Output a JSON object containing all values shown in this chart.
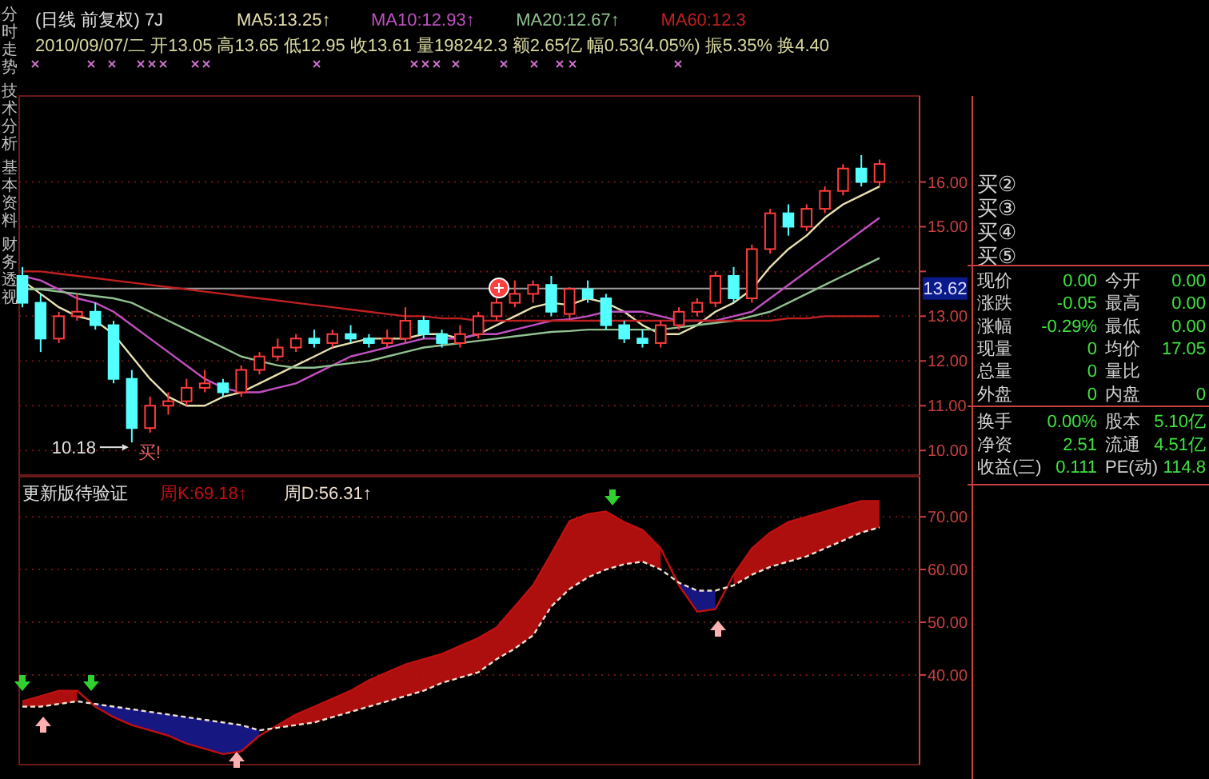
{
  "chart_data": [
    {
      "type": "candlestick",
      "title": "(日线 前复权) 7J",
      "categories": [
        null,
        null,
        null,
        null,
        null,
        null,
        null,
        null,
        null,
        null,
        null,
        null,
        null,
        null,
        null,
        null,
        null,
        null,
        null,
        null,
        null,
        null,
        null,
        null,
        null,
        null,
        null,
        null,
        null,
        null,
        null,
        null,
        null,
        null,
        null,
        null,
        null,
        null,
        null,
        null,
        null,
        null,
        null,
        null,
        null,
        null,
        null,
        null
      ],
      "ohlc": [
        [
          13.9,
          14.1,
          13.2,
          13.3
        ],
        [
          13.3,
          13.5,
          12.2,
          12.5
        ],
        [
          12.5,
          13.1,
          12.4,
          13.0
        ],
        [
          13.0,
          13.5,
          12.9,
          13.1
        ],
        [
          13.1,
          13.3,
          12.7,
          12.8
        ],
        [
          12.8,
          12.9,
          11.5,
          11.6
        ],
        [
          11.6,
          11.8,
          10.18,
          10.5
        ],
        [
          10.5,
          11.2,
          10.4,
          11.0
        ],
        [
          11.0,
          11.3,
          10.8,
          11.1
        ],
        [
          11.1,
          11.6,
          11.0,
          11.4
        ],
        [
          11.4,
          11.8,
          11.3,
          11.5
        ],
        [
          11.5,
          11.6,
          11.2,
          11.3
        ],
        [
          11.3,
          11.9,
          11.2,
          11.8
        ],
        [
          11.8,
          12.2,
          11.7,
          12.1
        ],
        [
          12.1,
          12.5,
          12.0,
          12.3
        ],
        [
          12.3,
          12.6,
          12.2,
          12.5
        ],
        [
          12.5,
          12.7,
          12.3,
          12.4
        ],
        [
          12.4,
          12.7,
          12.3,
          12.6
        ],
        [
          12.6,
          12.8,
          12.4,
          12.5
        ],
        [
          12.5,
          12.6,
          12.3,
          12.4
        ],
        [
          12.4,
          12.7,
          12.3,
          12.5
        ],
        [
          12.5,
          13.2,
          12.4,
          12.9
        ],
        [
          12.9,
          13.0,
          12.5,
          12.6
        ],
        [
          12.6,
          12.7,
          12.3,
          12.4
        ],
        [
          12.4,
          12.8,
          12.3,
          12.6
        ],
        [
          12.6,
          13.1,
          12.5,
          13.0
        ],
        [
          13.0,
          13.4,
          12.9,
          13.3
        ],
        [
          13.3,
          13.8,
          13.2,
          13.5
        ],
        [
          13.5,
          13.8,
          13.3,
          13.7
        ],
        [
          13.7,
          13.9,
          13.0,
          13.1
        ],
        [
          13.05,
          13.65,
          12.95,
          13.61
        ],
        [
          13.6,
          13.8,
          13.3,
          13.4
        ],
        [
          13.4,
          13.5,
          12.7,
          12.8
        ],
        [
          12.8,
          12.9,
          12.4,
          12.5
        ],
        [
          12.5,
          12.7,
          12.3,
          12.4
        ],
        [
          12.4,
          12.9,
          12.3,
          12.8
        ],
        [
          12.8,
          13.2,
          12.7,
          13.1
        ],
        [
          13.1,
          13.4,
          13.0,
          13.3
        ],
        [
          13.3,
          14.0,
          13.2,
          13.9
        ],
        [
          13.9,
          14.1,
          13.3,
          13.4
        ],
        [
          13.4,
          14.6,
          13.3,
          14.5
        ],
        [
          14.5,
          15.4,
          14.4,
          15.3
        ],
        [
          15.3,
          15.5,
          14.8,
          15.0
        ],
        [
          15.0,
          15.5,
          14.9,
          15.4
        ],
        [
          15.4,
          15.9,
          15.3,
          15.8
        ],
        [
          15.8,
          16.4,
          15.7,
          16.3
        ],
        [
          16.3,
          16.6,
          15.9,
          16.0
        ],
        [
          16.0,
          16.5,
          15.9,
          16.4
        ]
      ],
      "series": [
        {
          "type": "line",
          "name": "MA5:13.25↑",
          "color": "#e8e0b0",
          "values": [
            13.8,
            13.5,
            13.2,
            13.0,
            12.9,
            12.6,
            12.1,
            11.6,
            11.2,
            11.0,
            11.0,
            11.2,
            11.3,
            11.5,
            11.7,
            11.9,
            12.1,
            12.3,
            12.4,
            12.5,
            12.5,
            12.5,
            12.6,
            12.6,
            12.5,
            12.6,
            12.8,
            13.0,
            13.2,
            13.3,
            13.25,
            13.4,
            13.3,
            13.1,
            12.8,
            12.6,
            12.6,
            12.8,
            13.1,
            13.3,
            13.6,
            14.1,
            14.5,
            14.8,
            15.2,
            15.5,
            15.7,
            15.9
          ]
        },
        {
          "type": "line",
          "name": "MA10:12.93↑",
          "color": "#c050c0",
          "values": [
            13.9,
            13.8,
            13.6,
            13.4,
            13.3,
            13.1,
            12.8,
            12.5,
            12.2,
            11.9,
            11.6,
            11.4,
            11.3,
            11.3,
            11.4,
            11.5,
            11.7,
            11.9,
            12.1,
            12.2,
            12.3,
            12.4,
            12.5,
            12.5,
            12.5,
            12.6,
            12.6,
            12.7,
            12.8,
            12.9,
            12.93,
            13.0,
            13.1,
            13.1,
            13.1,
            13.0,
            12.9,
            12.9,
            12.9,
            13.0,
            13.1,
            13.4,
            13.7,
            14.0,
            14.3,
            14.6,
            14.9,
            15.2
          ]
        },
        {
          "type": "line",
          "name": "MA20:12.67↑",
          "color": "#90c090",
          "values": [
            13.6,
            13.6,
            13.55,
            13.5,
            13.45,
            13.4,
            13.3,
            13.1,
            12.9,
            12.7,
            12.5,
            12.3,
            12.1,
            12.0,
            11.9,
            11.85,
            11.85,
            11.9,
            11.95,
            12.0,
            12.1,
            12.2,
            12.3,
            12.35,
            12.4,
            12.45,
            12.5,
            12.55,
            12.6,
            12.65,
            12.67,
            12.7,
            12.7,
            12.7,
            12.7,
            12.7,
            12.75,
            12.8,
            12.85,
            12.9,
            13.0,
            13.1,
            13.3,
            13.5,
            13.7,
            13.9,
            14.1,
            14.3
          ]
        },
        {
          "type": "line",
          "name": "MA60:12.3",
          "color": "#c02020",
          "values": [
            14.0,
            14.0,
            13.95,
            13.9,
            13.85,
            13.8,
            13.75,
            13.7,
            13.65,
            13.6,
            13.55,
            13.5,
            13.45,
            13.4,
            13.35,
            13.3,
            13.25,
            13.2,
            13.15,
            13.1,
            13.05,
            13.0,
            13.0,
            12.95,
            12.95,
            12.9,
            12.9,
            12.9,
            12.9,
            12.9,
            12.9,
            12.9,
            12.9,
            12.9,
            12.9,
            12.9,
            12.9,
            12.9,
            12.9,
            12.9,
            12.9,
            12.9,
            12.95,
            12.95,
            13.0,
            13.0,
            13.0,
            13.0
          ]
        }
      ],
      "ylim": [
        9.45,
        17.85
      ],
      "yticks": [
        {
          "value": 10,
          "label": "10.00"
        },
        {
          "value": 11,
          "label": "11.00"
        },
        {
          "value": 12,
          "label": "12.00"
        },
        {
          "value": 13,
          "label": "13.00"
        },
        {
          "value": 14,
          "label": null
        },
        {
          "value": 15,
          "label": "15.00"
        },
        {
          "value": 16,
          "label": "16.00"
        }
      ],
      "grid": "y",
      "legend": "top",
      "tick_labels": "y",
      "ref_lines": [
        {
          "axis": "y",
          "value": 13.62,
          "label": "13.62",
          "color": "#a0a0a0"
        }
      ],
      "annotations": [
        "2010/09/07/二 开13.05 高13.65 低12.95 收13.61 量198242.3 额2.65亿 幅0.53(4.05%) 振5.35% 换4.40",
        "10.18",
        "买!"
      ]
    },
    {
      "type": "line",
      "title": "更新版待验证",
      "categories": [
        null,
        null,
        null,
        null,
        null,
        null,
        null,
        null,
        null,
        null,
        null,
        null,
        null,
        null,
        null,
        null,
        null,
        null,
        null,
        null,
        null,
        null,
        null,
        null,
        null,
        null,
        null,
        null,
        null,
        null,
        null,
        null,
        null,
        null,
        null,
        null,
        null,
        null,
        null,
        null,
        null,
        null,
        null,
        null,
        null,
        null,
        null,
        null
      ],
      "series": [
        {
          "name": "周K:69.18↑",
          "color": "#c01010",
          "line_style": "solid",
          "values": [
            35,
            36,
            37,
            37,
            34,
            32,
            30.5,
            29.5,
            28.5,
            27,
            26,
            25,
            25.5,
            28.5,
            30.5,
            32.5,
            34,
            35.5,
            37,
            39,
            40.5,
            42,
            43,
            44,
            45.5,
            47,
            49,
            53,
            57,
            63,
            69.18,
            70.5,
            71,
            69,
            67.5,
            64,
            57,
            52,
            52.5,
            59,
            64,
            67,
            69,
            70,
            71,
            72,
            73,
            73
          ],
          "lower": [
            34,
            34,
            34.5,
            35,
            null,
            null,
            null,
            null,
            null,
            null,
            null,
            null,
            null,
            null,
            30,
            30.5,
            31,
            32,
            33,
            34,
            35,
            36,
            37,
            38.5,
            39.5,
            40.5,
            43,
            45,
            47.5,
            53,
            56.31,
            58.5,
            60,
            61,
            61.5,
            60,
            null,
            null,
            null,
            57,
            59,
            60.5,
            61.5,
            62.5,
            64,
            65.5,
            67,
            68
          ],
          "upper": [
            35,
            36,
            37,
            37,
            null,
            null,
            null,
            null,
            null,
            null,
            null,
            null,
            null,
            null,
            30.5,
            32.5,
            34,
            35.5,
            37,
            39,
            40.5,
            42,
            43,
            44,
            45.5,
            47,
            49,
            53,
            57,
            63,
            69.18,
            70.5,
            71,
            69,
            67.5,
            64,
            null,
            null,
            null,
            59,
            64,
            67,
            69,
            70,
            71,
            72,
            73,
            73
          ]
        },
        {
          "name": "周D:56.31↑",
          "color": "#f0e0d0",
          "line_style": "dashed",
          "values": [
            34,
            34,
            34.5,
            35,
            34.5,
            34,
            33.5,
            33,
            32.5,
            32,
            31.5,
            31,
            30.5,
            29.5,
            30,
            30.5,
            31,
            32,
            33,
            34,
            35,
            36,
            37,
            38.5,
            39.5,
            40.5,
            43,
            45,
            47.5,
            53,
            56.31,
            58.5,
            60,
            61,
            61.5,
            60,
            57.5,
            56,
            56,
            57,
            59,
            60.5,
            61.5,
            62.5,
            64,
            65.5,
            67,
            68
          ]
        },
        {
          "color": "#1a1a90",
          "values": [
            null,
            null,
            null,
            null,
            null,
            null,
            null,
            null,
            null,
            null,
            null,
            null,
            null,
            null,
            null,
            null,
            null,
            null,
            null,
            null,
            null,
            null,
            null,
            null,
            null,
            null,
            null,
            null,
            null,
            null,
            null,
            null,
            null,
            null,
            null,
            null,
            null,
            null,
            null,
            null,
            null,
            null,
            null,
            null,
            null,
            null,
            null,
            null
          ],
          "lower": [
            null,
            null,
            null,
            null,
            34,
            32,
            30.5,
            29.5,
            28.5,
            27,
            26,
            25,
            25.5,
            28.5,
            null,
            null,
            null,
            null,
            null,
            null,
            null,
            null,
            null,
            null,
            null,
            null,
            null,
            null,
            null,
            null,
            null,
            null,
            null,
            null,
            null,
            null,
            57,
            52,
            52.5,
            null,
            null,
            null,
            null,
            null,
            null,
            null,
            null,
            null
          ],
          "upper": [
            null,
            null,
            null,
            null,
            34.5,
            34,
            33.5,
            33,
            32.5,
            32,
            31.5,
            31,
            30.5,
            29.5,
            null,
            null,
            null,
            null,
            null,
            null,
            null,
            null,
            null,
            null,
            null,
            null,
            null,
            null,
            null,
            null,
            null,
            null,
            null,
            null,
            null,
            null,
            57.5,
            56,
            56,
            null,
            null,
            null,
            null,
            null,
            null,
            null,
            null,
            null
          ]
        }
      ],
      "ylim": [
        23,
        77
      ],
      "yticks": [
        {
          "value": 40,
          "label": "40.00"
        },
        {
          "value": 50,
          "label": "50.00"
        },
        {
          "value": 60,
          "label": "60.00"
        },
        {
          "value": 70,
          "label": "70.00"
        }
      ],
      "grid": "y",
      "legend": "top",
      "tick_labels": "y"
    },
    {
      "type": "other",
      "annotations": [
        "买②",
        "买③",
        "买④",
        "买⑤",
        "现价 0.00 今开 0.00",
        "涨跌 -0.05 最高 0.00",
        "涨幅 -0.29% 最低 0.00",
        "现量 0 均价 17.05",
        "总量 0 量比",
        "外盘 0 内盘 0",
        "换手 0.00% 股本 5.10亿",
        "净资 2.51 流通 4.51亿",
        "收益(三) 0.111 PE(动) 114.8"
      ]
    },
    {
      "type": "other",
      "annotations": [
        "分时走势",
        "技术分析",
        "基本资料",
        "财务透视"
      ]
    }
  ]
}
